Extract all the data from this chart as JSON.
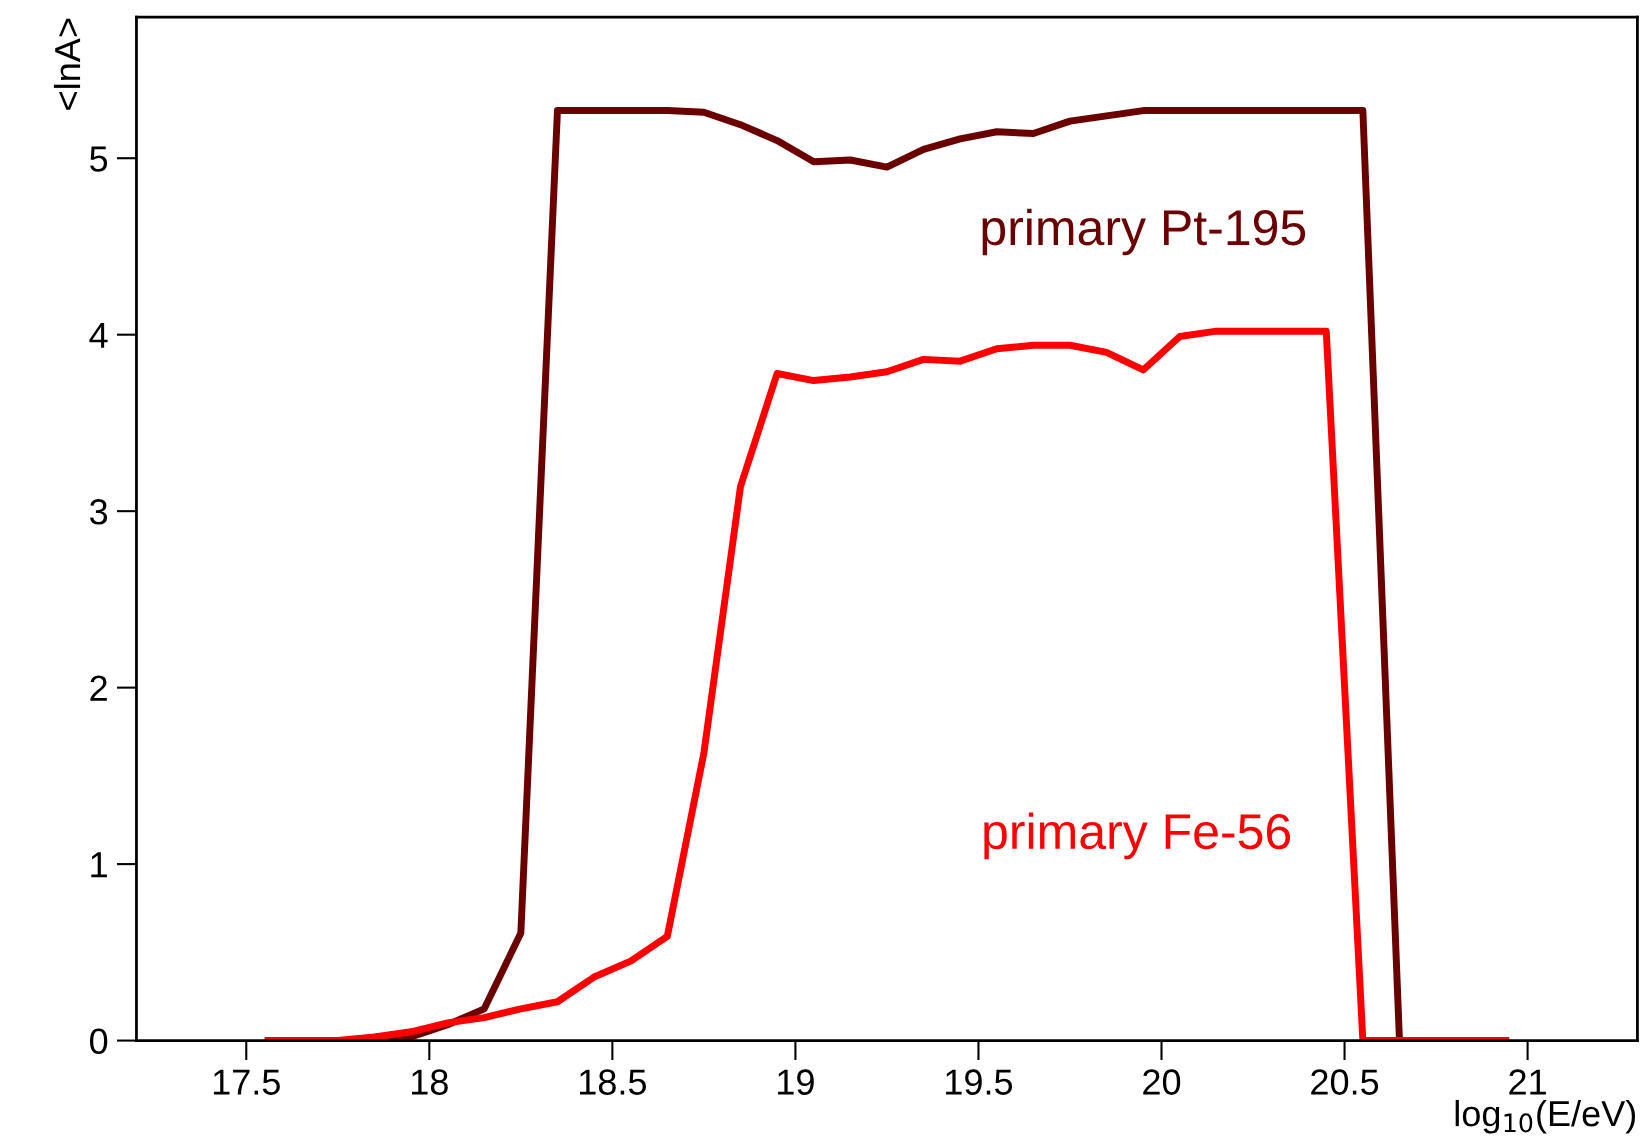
{
  "chart_data": {
    "type": "line",
    "xlabel": "log$_{10}$(E/eV)",
    "ylabel": "<lnA>",
    "x": [
      17.55,
      17.65,
      17.75,
      17.85,
      17.95,
      18.05,
      18.15,
      18.25,
      18.35,
      18.45,
      18.55,
      18.65,
      18.75,
      18.85,
      18.95,
      19.05,
      19.15,
      19.25,
      19.35,
      19.45,
      19.55,
      19.65,
      19.75,
      19.85,
      19.95,
      20.05,
      20.15,
      20.25,
      20.35,
      20.45,
      20.55,
      20.65,
      20.75,
      20.85,
      20.95
    ],
    "series": [
      {
        "name": "primary Pt-195",
        "color": "#6b0000",
        "values": [
          null,
          null,
          0,
          0,
          0.02,
          0.09,
          0.18,
          0.61,
          5.27,
          5.27,
          5.27,
          5.27,
          5.26,
          5.19,
          5.1,
          4.98,
          4.99,
          4.95,
          5.05,
          5.11,
          5.15,
          5.14,
          5.21,
          5.24,
          5.27,
          5.27,
          5.27,
          5.27,
          5.27,
          5.27,
          5.27,
          0,
          0,
          null,
          null
        ]
      },
      {
        "name": "primary Fe-56",
        "color": "#ff0000",
        "values": [
          0,
          0,
          0,
          0.02,
          0.05,
          0.1,
          0.13,
          0.18,
          0.22,
          0.36,
          0.45,
          0.59,
          1.63,
          3.14,
          3.78,
          3.74,
          3.76,
          3.79,
          3.86,
          3.85,
          3.92,
          3.94,
          3.94,
          3.9,
          3.8,
          3.99,
          4.02,
          4.02,
          4.02,
          4.02,
          0,
          0,
          0,
          0,
          0
        ]
      }
    ],
    "xlim": [
      17.2,
      21.3
    ],
    "ylim": [
      0,
      5.8
    ],
    "xticks": [
      17.5,
      18,
      18.5,
      19,
      19.5,
      20,
      20.5,
      21
    ],
    "yticks": [
      0,
      1,
      2,
      3,
      4,
      5
    ],
    "grid": false,
    "legend": false,
    "marker": "none",
    "line_style": "solid"
  }
}
